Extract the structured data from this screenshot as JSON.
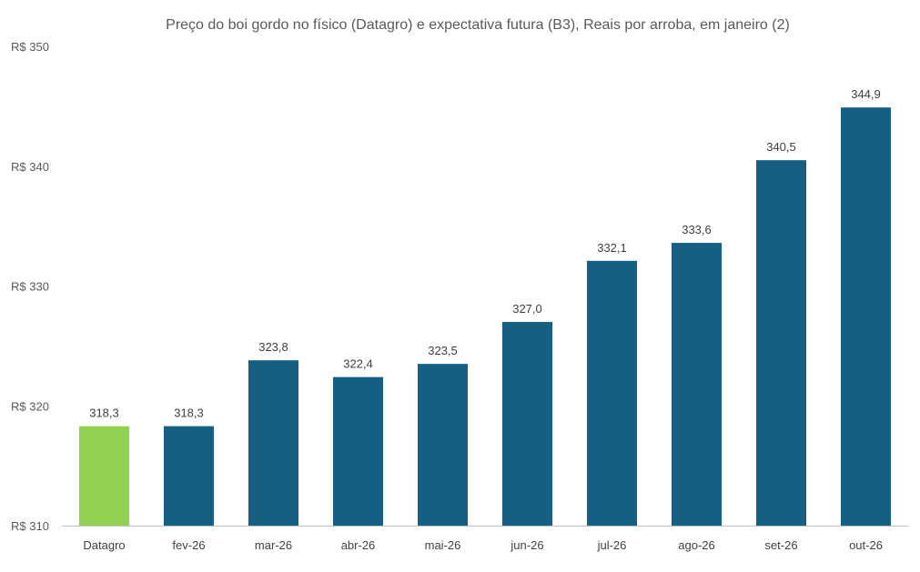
{
  "chart_data": {
    "type": "bar",
    "title": "Preço do boi gordo no físico (Datagro)  e expectativa futura (B3), Reais por arroba, em janeiro (2)",
    "xlabel": "",
    "ylabel": "",
    "ylim": [
      310,
      350
    ],
    "y_ticks": [
      310,
      320,
      330,
      340,
      350
    ],
    "y_tick_labels": [
      "R$ 310",
      "R$ 320",
      "R$ 330",
      "R$ 340",
      "R$ 350"
    ],
    "categories": [
      "Datagro",
      "fev-26",
      "mar-26",
      "abr-26",
      "mai-26",
      "jun-26",
      "jul-26",
      "ago-26",
      "set-26",
      "out-26"
    ],
    "values": [
      318.3,
      318.3,
      323.8,
      322.4,
      323.5,
      327.0,
      332.1,
      333.6,
      340.5,
      344.9
    ],
    "value_labels": [
      "318,3",
      "318,3",
      "323,8",
      "322,4",
      "323,5",
      "327,0",
      "332,1",
      "333,6",
      "340,5",
      "344,9"
    ],
    "bar_colors": [
      "#92d050",
      "#156082",
      "#156082",
      "#156082",
      "#156082",
      "#156082",
      "#156082",
      "#156082",
      "#156082",
      "#156082"
    ],
    "axis_color": "#bfbfbf",
    "grid": false,
    "legend": "none"
  }
}
